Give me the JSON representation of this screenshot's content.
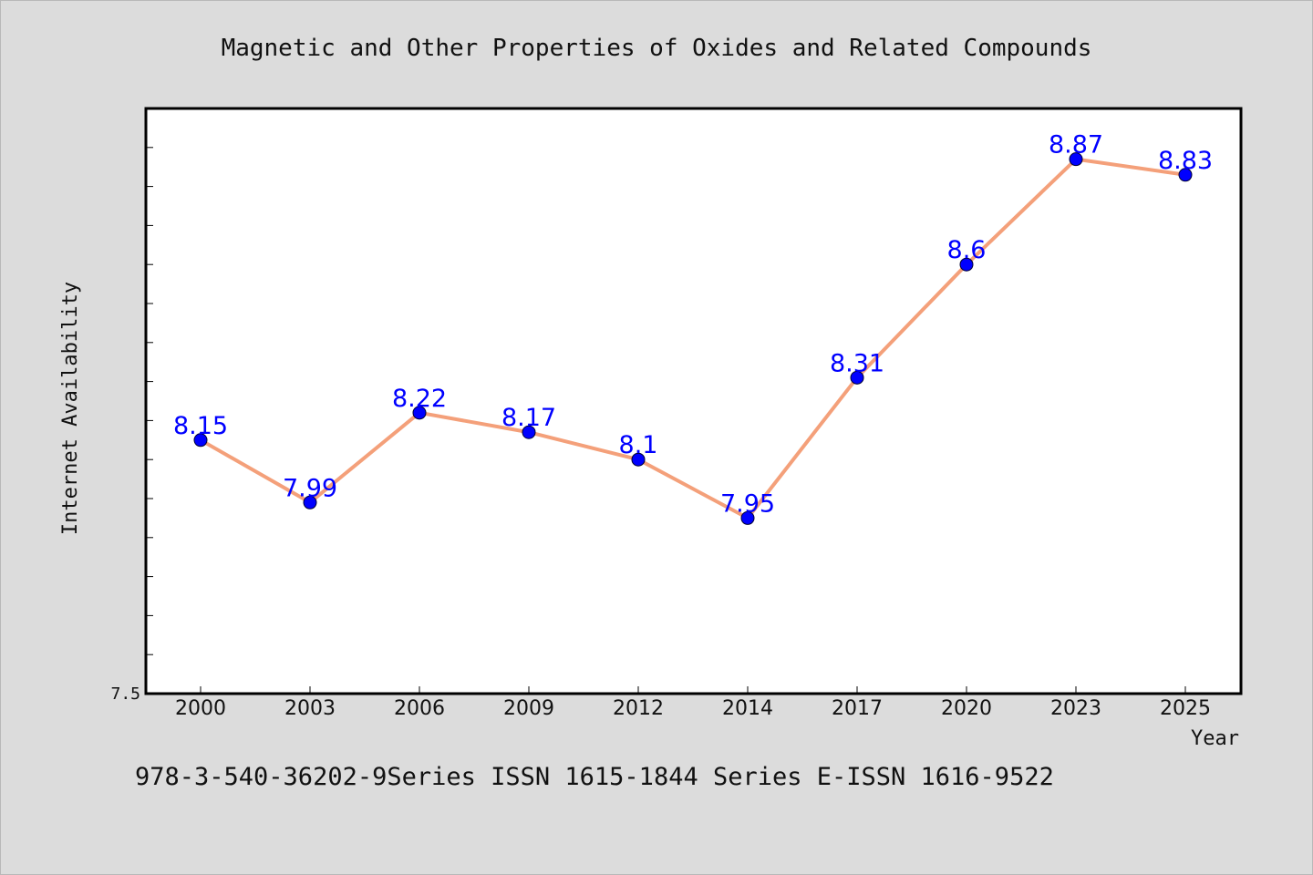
{
  "chart_data": {
    "type": "line",
    "title": "Magnetic and Other Properties of Oxides and Related Compounds",
    "xlabel": "Year",
    "ylabel": "Internet Availability",
    "categories": [
      "2000",
      "2003",
      "2006",
      "2009",
      "2012",
      "2014",
      "2017",
      "2020",
      "2023",
      "2025"
    ],
    "series": [
      {
        "values": [
          8.15,
          7.99,
          8.22,
          8.17,
          8.1,
          7.95,
          8.31,
          8.6,
          8.87,
          8.83
        ],
        "labels": [
          "8.15",
          "7.99",
          "8.22",
          "8.17",
          "8.1",
          "7.95",
          "8.31",
          "8.6",
          "8.87",
          "8.83"
        ],
        "line_color": "#f4a07a",
        "marker_color": "#0000ff"
      }
    ],
    "ylim": [
      7.5,
      9.0
    ],
    "yticks": [
      7.5
    ],
    "ytick_labels": [
      "7.5"
    ],
    "grid": false,
    "legend": "none",
    "data_label_color": "#0000ff"
  },
  "footer": {
    "text": "978-3-540-36202-9Series ISSN 1615-1844 Series E-ISSN 1616-9522"
  }
}
